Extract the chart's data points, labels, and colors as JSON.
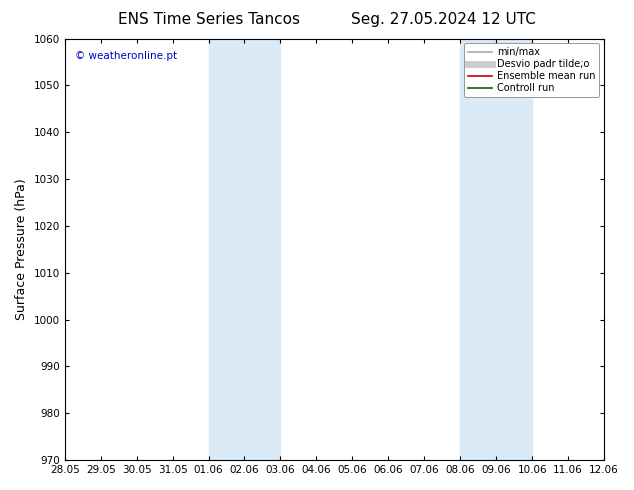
{
  "title_left": "ENS Time Series Tancos",
  "title_right": "Seg. 27.05.2024 12 UTC",
  "ylabel": "Surface Pressure (hPa)",
  "ylim": [
    970,
    1060
  ],
  "yticks": [
    970,
    980,
    990,
    1000,
    1010,
    1020,
    1030,
    1040,
    1050,
    1060
  ],
  "xtick_labels": [
    "28.05",
    "29.05",
    "30.05",
    "31.05",
    "01.06",
    "02.06",
    "03.06",
    "04.06",
    "05.06",
    "06.06",
    "07.06",
    "08.06",
    "09.06",
    "10.06",
    "11.06",
    "12.06"
  ],
  "watermark": "© weatheronline.pt",
  "watermark_color": "#0000cc",
  "background_color": "#ffffff",
  "plot_bg_color": "#ffffff",
  "shaded_bands": [
    {
      "xstart": 4,
      "xend": 6
    },
    {
      "xstart": 11,
      "xend": 13
    }
  ],
  "shade_color": "#daeaf7",
  "legend_entries": [
    {
      "label": "min/max",
      "color": "#aaaaaa",
      "lw": 1.2,
      "style": "solid"
    },
    {
      "label": "Desvio padr tilde;o",
      "color": "#cccccc",
      "lw": 5,
      "style": "solid"
    },
    {
      "label": "Ensemble mean run",
      "color": "#cc0000",
      "lw": 1.2,
      "style": "solid"
    },
    {
      "label": "Controll run",
      "color": "#006600",
      "lw": 1.2,
      "style": "solid"
    }
  ],
  "title_fontsize": 11,
  "tick_fontsize": 7.5,
  "ylabel_fontsize": 9,
  "watermark_fontsize": 7.5,
  "legend_fontsize": 7
}
